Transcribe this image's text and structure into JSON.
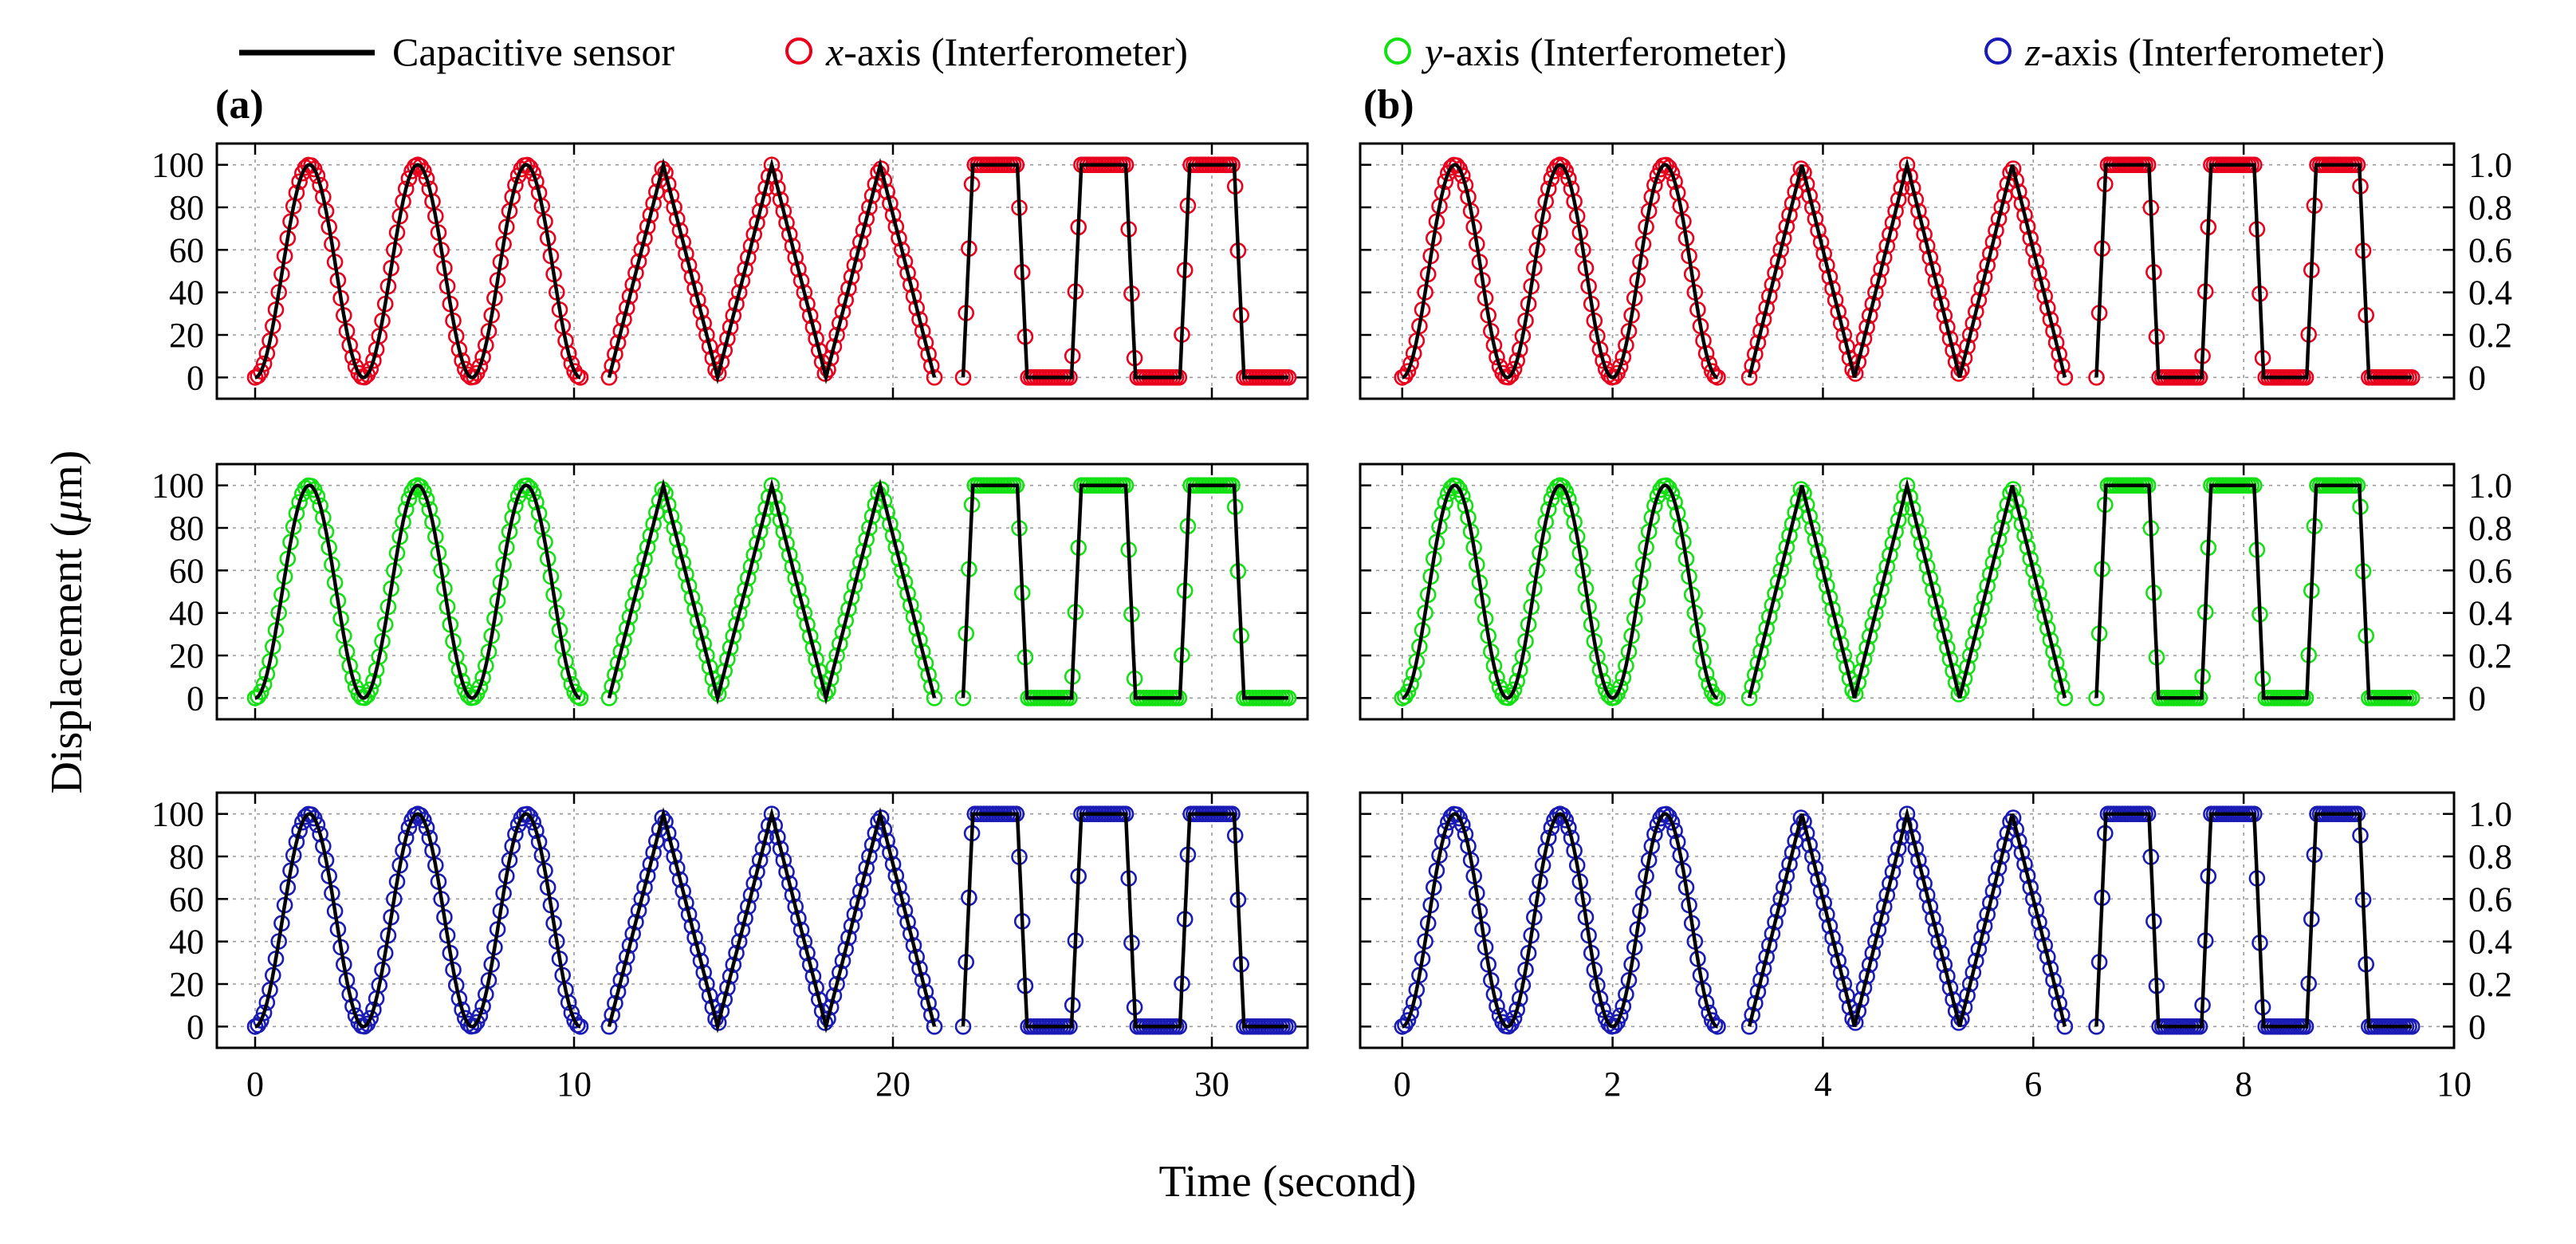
{
  "legend": {
    "sensor_label": "Capacitive sensor",
    "x_prefix": "x",
    "y_prefix": "y",
    "z_prefix": "z",
    "axis_suffix": "-axis (Interferometer)"
  },
  "colors": {
    "sensor": "#000000",
    "x": "#e8001c",
    "y": "#12e012",
    "z": "#1a1ab4"
  },
  "labels": {
    "panel_a": "(a)",
    "panel_b": "(b)",
    "ylabel_prefix": "Displacement (",
    "ylabel_mu": "μ",
    "ylabel_suffix": "m)",
    "xlabel": "Time (second)"
  },
  "chart_data": [
    {
      "type": "line",
      "panel": "a",
      "title": "(a)",
      "xlabel": "Time (second)",
      "ylabel": "Displacement (μm)",
      "xlim": [
        -1.2,
        33
      ],
      "ylim": [
        -10,
        110
      ],
      "xticks": [
        0,
        10,
        20,
        30
      ],
      "yticks": [
        0,
        20,
        40,
        60,
        80,
        100
      ],
      "grid": true,
      "rows": [
        "x",
        "y",
        "z"
      ],
      "series": [
        {
          "name": "Capacitive sensor",
          "style": "line",
          "color_key": "sensor"
        },
        {
          "name": "x-axis (Interferometer)",
          "style": "circle",
          "color_key": "x"
        },
        {
          "name": "y-axis (Interferometer)",
          "style": "circle",
          "color_key": "y"
        },
        {
          "name": "z-axis (Interferometer)",
          "style": "circle",
          "color_key": "z"
        }
      ],
      "segments": [
        {
          "waveform": "sine",
          "t_start": 0,
          "t_end": 10.2,
          "cycles": 3,
          "amplitude": 100
        },
        {
          "waveform": "triangle",
          "t_start": 11.1,
          "t_end": 21.3,
          "cycles": 3,
          "amplitude": 100
        },
        {
          "waveform": "square",
          "t_start": 22.2,
          "t_end": 32.4,
          "cycles": 3,
          "amplitude": 100
        }
      ]
    },
    {
      "type": "line",
      "panel": "b",
      "title": "(b)",
      "xlabel": "Time (second)",
      "ylabel": "Displacement (μm)",
      "xlim": [
        -0.4,
        10
      ],
      "ylim": [
        -10,
        110
      ],
      "xticks": [
        0,
        2,
        4,
        6,
        8,
        10
      ],
      "yticks": [
        0,
        20,
        40,
        60,
        80,
        100
      ],
      "y2ticks": [
        "0",
        "0.2",
        "0.4",
        "0.6",
        "0.8",
        "1.0"
      ],
      "y2values": [
        0,
        20,
        40,
        60,
        80,
        100
      ],
      "grid": true,
      "rows": [
        "x",
        "y",
        "z"
      ],
      "series": [
        {
          "name": "Capacitive sensor",
          "style": "line",
          "color_key": "sensor"
        },
        {
          "name": "x-axis (Interferometer)",
          "style": "circle",
          "color_key": "x"
        },
        {
          "name": "y-axis (Interferometer)",
          "style": "circle",
          "color_key": "y"
        },
        {
          "name": "z-axis (Interferometer)",
          "style": "circle",
          "color_key": "z"
        }
      ],
      "segments": [
        {
          "waveform": "sine",
          "t_start": 0,
          "t_end": 3.0,
          "cycles": 3,
          "amplitude": 100
        },
        {
          "waveform": "triangle",
          "t_start": 3.3,
          "t_end": 6.3,
          "cycles": 3,
          "amplitude": 100
        },
        {
          "waveform": "square",
          "t_start": 6.6,
          "t_end": 9.6,
          "cycles": 3,
          "amplitude": 100
        }
      ]
    }
  ]
}
